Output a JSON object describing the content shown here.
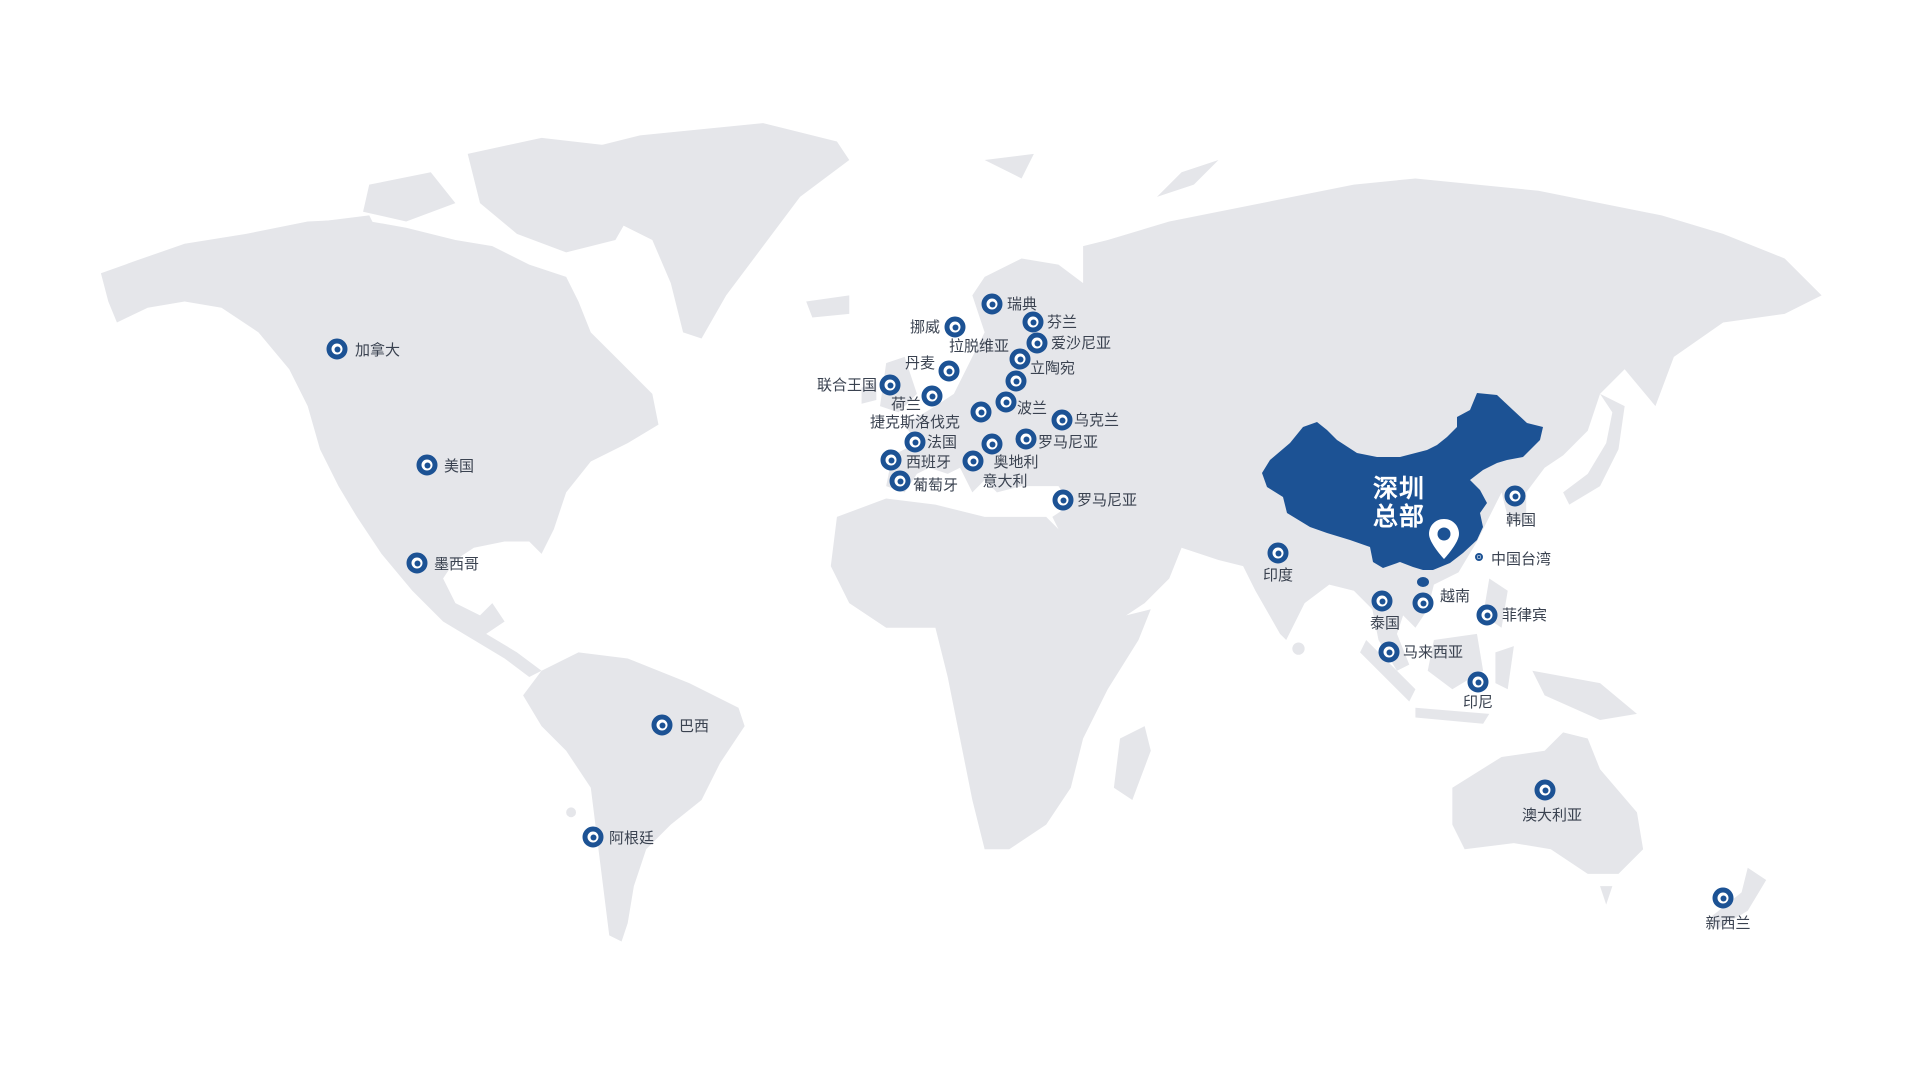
{
  "headquarters": {
    "line1": "深圳",
    "line2": "总部",
    "icon": "map-pin-icon"
  },
  "colors": {
    "land": "#e5e6ea",
    "highlight": "#1c5294",
    "label": "#3a4250"
  },
  "locations": [
    {
      "label": "加拿大"
    },
    {
      "label": "美国"
    },
    {
      "label": "墨西哥"
    },
    {
      "label": "巴西"
    },
    {
      "label": "阿根廷"
    },
    {
      "label": "瑞典"
    },
    {
      "label": "挪威"
    },
    {
      "label": "芬兰"
    },
    {
      "label": "爱沙尼亚"
    },
    {
      "label": "拉脱维亚"
    },
    {
      "label": "立陶宛"
    },
    {
      "label": "丹麦"
    },
    {
      "label": "联合王国"
    },
    {
      "label": "荷兰"
    },
    {
      "label": "波兰"
    },
    {
      "label": "捷克斯洛伐克"
    },
    {
      "label": "乌克兰"
    },
    {
      "label": "法国"
    },
    {
      "label": "罗马尼亚"
    },
    {
      "label": "奥地利"
    },
    {
      "label": "西班牙"
    },
    {
      "label": "意大利"
    },
    {
      "label": "葡萄牙"
    },
    {
      "label": "罗马尼亚"
    },
    {
      "label": "印度"
    },
    {
      "label": "泰国"
    },
    {
      "label": "越南"
    },
    {
      "label": "马来西亚"
    },
    {
      "label": "印尼"
    },
    {
      "label": "菲律宾"
    },
    {
      "label": "韩国"
    },
    {
      "label": "中国台湾"
    },
    {
      "label": "澳大利亚"
    },
    {
      "label": "新西兰"
    }
  ]
}
